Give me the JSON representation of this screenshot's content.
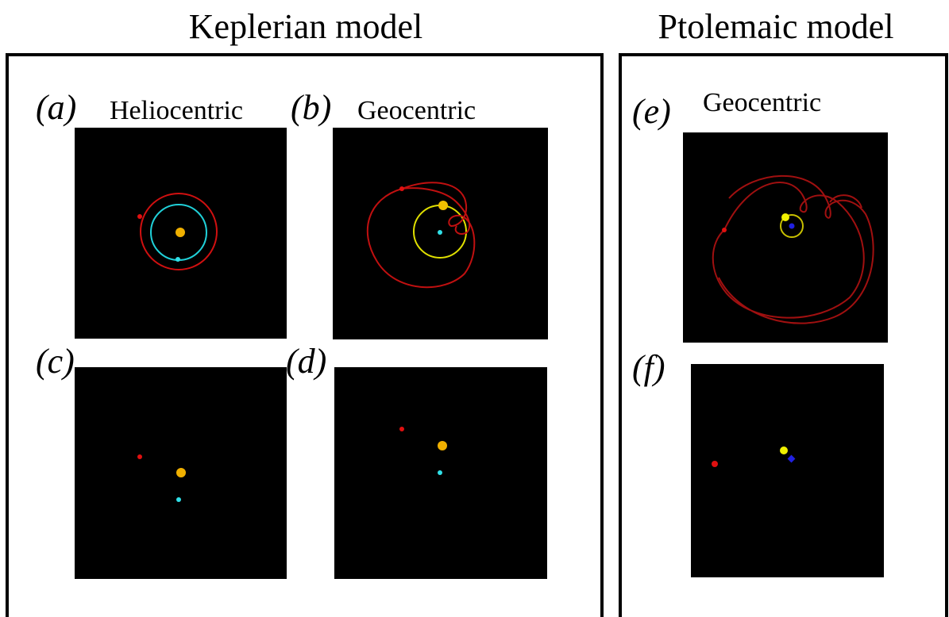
{
  "header": {
    "left_title": "Keplerian model",
    "right_title": "Ptolemaic model"
  },
  "panels": [
    {
      "label": "(a)",
      "caption": "Heliocentric"
    },
    {
      "label": "(b)",
      "caption": "Geocentric"
    },
    {
      "label": "(c)"
    },
    {
      "label": "(d)"
    },
    {
      "label": "(e)",
      "caption": "Geocentric"
    },
    {
      "label": "(f)"
    }
  ]
}
